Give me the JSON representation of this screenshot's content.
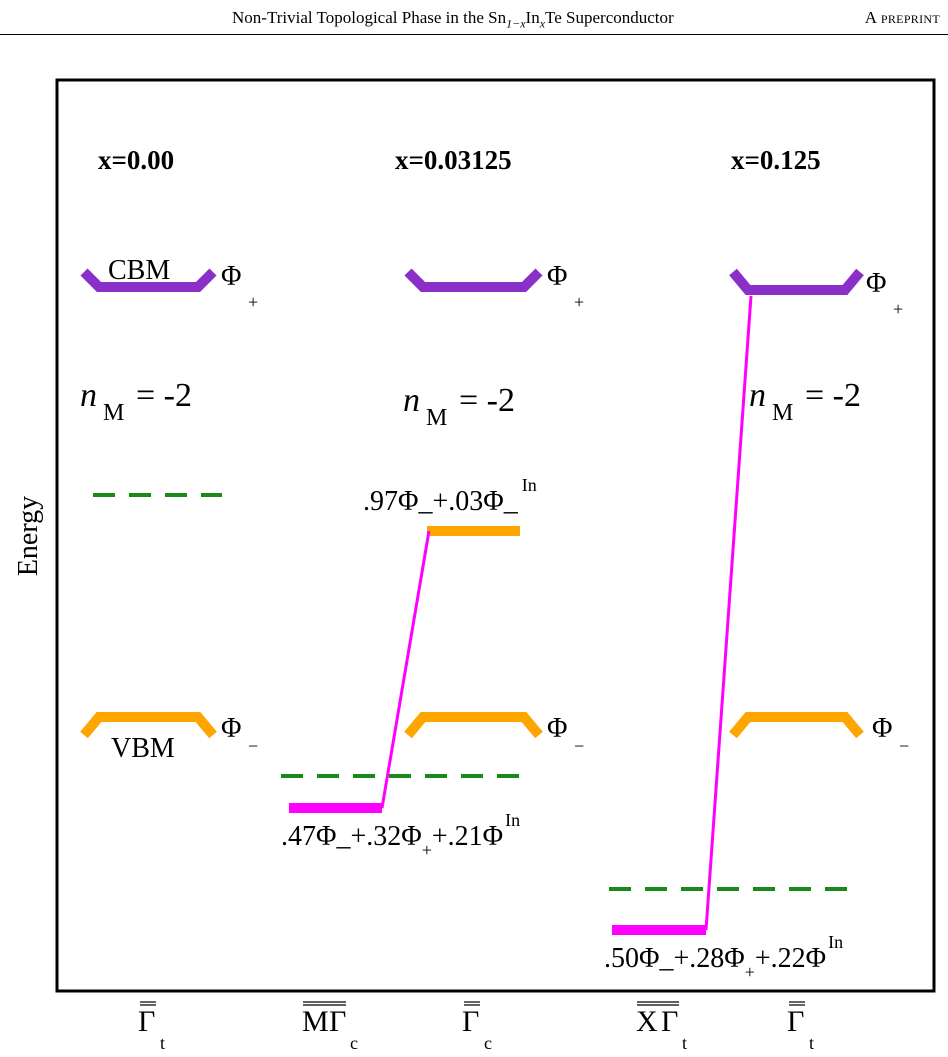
{
  "header": {
    "title_pre": "Non-Trivial Topological Phase in the Sn",
    "title_sub1": "1−x",
    "title_mid": "In",
    "title_sub2": "x",
    "title_post": "Te Superconductor",
    "right": "A preprint"
  },
  "diagram": {
    "y_label": "Energy",
    "panels": [
      {
        "x_label": "x=0.00",
        "cbm_label": "CBM",
        "vbm_label": "VBM",
        "cbm_state": {
          "base": "Φ",
          "sub": "+"
        },
        "vbm_state": {
          "base": "Φ",
          "sub": "−"
        },
        "chern": {
          "n": "n",
          "sub": "M",
          "value": " = -2"
        }
      },
      {
        "x_label": "x=0.03125",
        "cbm_state": {
          "base": "Φ",
          "sub": "+"
        },
        "vbm_state": {
          "base": "Φ",
          "sub": "−"
        },
        "chern": {
          "n": "n",
          "sub": "M",
          "value": " = -2"
        },
        "upper_level_label": {
          "t1": ".97Φ",
          "t2": "_+.03Φ",
          "t3": "_",
          "sup": "In"
        },
        "lower_level_label": {
          "t1": ".47Φ",
          "t2": "_+.32Φ",
          "sub": "+",
          "t3": "+.21Φ",
          "sup": "In"
        }
      },
      {
        "x_label": "x=0.125",
        "cbm_state": {
          "base": "Φ",
          "sub": "+"
        },
        "vbm_state": {
          "base": "Φ",
          "sub": "−"
        },
        "chern": {
          "n": "n",
          "sub": "M",
          "value": " = -2"
        },
        "lower_level_label": {
          "t1": ".50Φ",
          "t2": "_+.28Φ",
          "sub": "+",
          "t3": "+.22Φ",
          "sup": "In"
        }
      }
    ],
    "k_labels": [
      {
        "parts": [
          "Γ"
        ],
        "sub": "t"
      },
      {
        "parts": [
          "M",
          "Γ"
        ],
        "sub": "c"
      },
      {
        "parts": [
          "Γ"
        ],
        "sub": "c"
      },
      {
        "parts": [
          "X",
          "Γ"
        ],
        "sub": "t"
      },
      {
        "parts": [
          "Γ"
        ],
        "sub": "t"
      }
    ],
    "colors": {
      "cbm": "#8B2FC9",
      "vbm": "#FFA500",
      "in_state": "#FF00FF",
      "fermi": "#1A8A1A",
      "frame": "#000000"
    }
  }
}
